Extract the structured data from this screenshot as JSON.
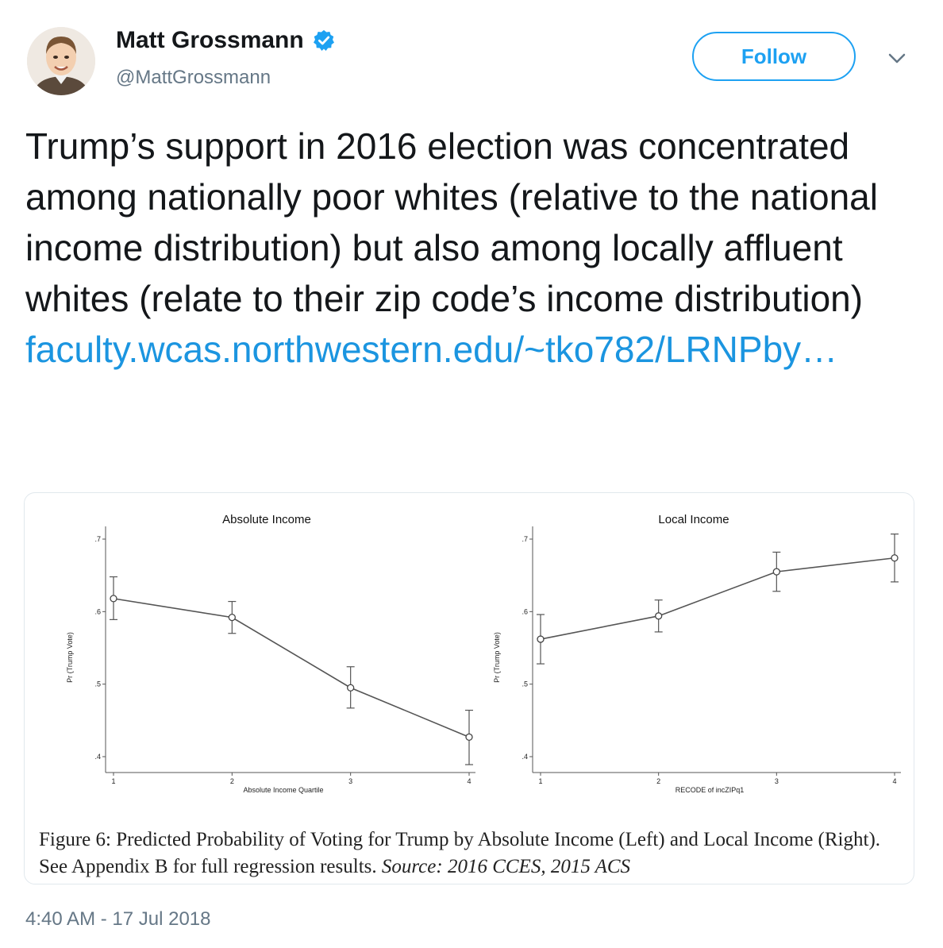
{
  "user": {
    "name": "Matt Grossmann",
    "handle": "@MattGrossmann"
  },
  "follow_label": "Follow",
  "tweet": {
    "text": "Trump’s support in 2016 election was concentrated among nationally poor whites (relative to the national income distribution) but also among locally affluent whites (relate to their zip code’s income distribution)",
    "link": "faculty.wcas.northwestern.edu/~tko782/LRNPby…"
  },
  "figure": {
    "caption_main": "Figure 6:  Predicted Probability of Voting for Trump by Absolute Income (Left) and Local Income (Right). See Appendix B for full regression results. ",
    "caption_source": "Source: 2016 CCES, 2015 ACS"
  },
  "timestamp": "4:40 AM - 17 Jul 2018",
  "colors": {
    "accent": "#1da1f2",
    "link": "#1b95e0",
    "muted": "#657786"
  },
  "chart_data": [
    {
      "type": "line",
      "title": "Absolute Income",
      "xlabel": "Absolute Income Quartile",
      "ylabel": "Pr (Trump Vote)",
      "x": [
        1,
        2,
        3,
        4
      ],
      "y": [
        0.618,
        0.592,
        0.495,
        0.427
      ],
      "ci_low": [
        0.589,
        0.57,
        0.467,
        0.389
      ],
      "ci_high": [
        0.648,
        0.614,
        0.524,
        0.464
      ],
      "xticks": [
        "1",
        "2",
        "3",
        "4"
      ],
      "yticks": [
        ".4",
        ".5",
        ".6",
        ".7"
      ],
      "ylim": [
        0.4,
        0.7
      ]
    },
    {
      "type": "line",
      "title": "Local Income",
      "xlabel": "RECODE of incZIPq1",
      "ylabel": "Pr (Trump Vote)",
      "x": [
        1,
        2,
        3,
        4
      ],
      "y": [
        0.562,
        0.594,
        0.655,
        0.674
      ],
      "ci_low": [
        0.528,
        0.572,
        0.628,
        0.641
      ],
      "ci_high": [
        0.596,
        0.616,
        0.682,
        0.707
      ],
      "xticks": [
        "1",
        "2",
        "3",
        "4"
      ],
      "yticks": [
        ".4",
        ".5",
        ".6",
        ".7"
      ],
      "ylim": [
        0.4,
        0.7
      ]
    }
  ]
}
